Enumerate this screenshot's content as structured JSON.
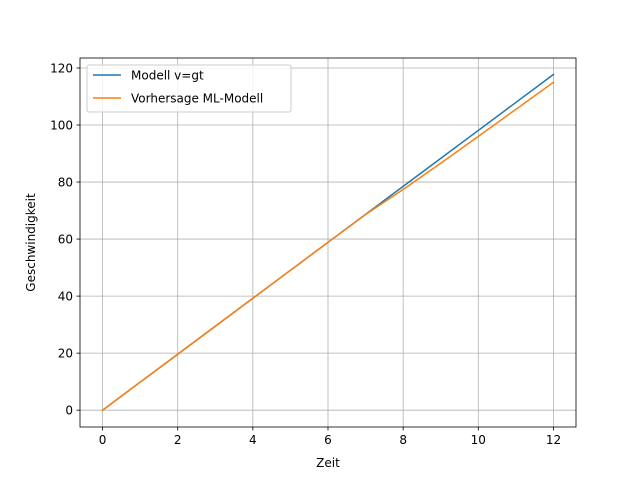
{
  "chart_data": {
    "type": "line",
    "title": "",
    "xlabel": "Zeit",
    "ylabel": "Geschwindigkeit",
    "xlim": [
      -0.6,
      12.6
    ],
    "ylim": [
      -5.9,
      123.5
    ],
    "xticks": [
      0,
      2,
      4,
      6,
      8,
      10,
      12
    ],
    "yticks": [
      0,
      20,
      40,
      60,
      80,
      100,
      120
    ],
    "grid": true,
    "legend": "upper left",
    "series": [
      {
        "name": "Modell v=gt",
        "color": "#1f77b4",
        "x": [
          0,
          1,
          2,
          3,
          4,
          5,
          6,
          7,
          8,
          9,
          10,
          11,
          12
        ],
        "y": [
          0,
          9.81,
          19.62,
          29.43,
          39.24,
          49.05,
          58.86,
          68.67,
          78.48,
          88.29,
          98.1,
          107.91,
          117.72
        ]
      },
      {
        "name": "Vorhersage ML-Modell",
        "color": "#ff7f0e",
        "x": [
          0,
          1,
          2,
          3,
          4,
          5,
          6,
          7,
          8,
          9,
          10,
          11,
          12
        ],
        "y": [
          0,
          9.81,
          19.62,
          29.43,
          39.24,
          49.05,
          58.86,
          68.6,
          77.4,
          86.6,
          96.0,
          105.5,
          115.0
        ]
      }
    ]
  }
}
